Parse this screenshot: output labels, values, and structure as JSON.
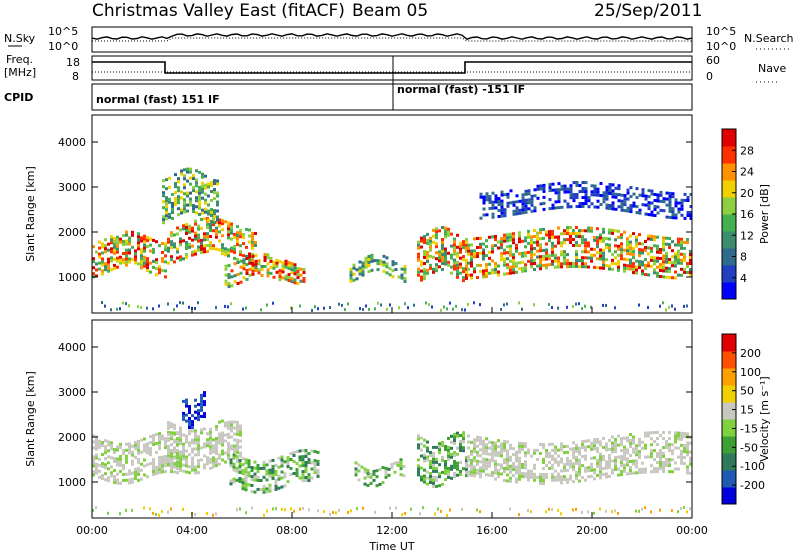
{
  "header": {
    "station_title": "Christmas Valley East (fitACF)",
    "beam_label": "Beam 05",
    "date": "25/Sep/2011"
  },
  "noise_panel": {
    "left_label": "N.Sky",
    "left_ticks": [
      "10^5",
      "10^0"
    ],
    "right_ticks": [
      "10^5",
      "10^0"
    ],
    "right_label": "N.Search"
  },
  "freq_panel": {
    "left_label_1": "Freq.",
    "left_label_2": "[MHz]",
    "left_ticks": [
      "18",
      "8"
    ],
    "right_ticks": [
      "60",
      "0"
    ],
    "right_label": "Nave"
  },
  "cpid_panel": {
    "label": "CPID",
    "mode_1": "normal (fast) 151 IF",
    "mode_2": "normal (fast) -151 IF"
  },
  "chart_data": [
    {
      "type": "heatmap",
      "name": "power",
      "ylabel": "Slant Range [km]",
      "yticks": [
        "1000",
        "2000",
        "3000",
        "4000"
      ],
      "ylim": [
        200,
        4600
      ],
      "xlim_hours": [
        0,
        24
      ],
      "colorbar_label": "Power [dB]",
      "colorbar_ticks": [
        "28",
        "24",
        "20",
        "16",
        "12",
        "8",
        "4"
      ],
      "colorbar_colors": [
        "#0000ff",
        "#2040c0",
        "#2e6b8c",
        "#3c8c6e",
        "#44b050",
        "#8cd040",
        "#f0d000",
        "#ff9000",
        "#ff3000",
        "#e00000"
      ],
      "features": [
        {
          "t0": 0.0,
          "t1": 3.0,
          "r0": 1150,
          "r1": 1900,
          "level": "high"
        },
        {
          "t0": 3.0,
          "t1": 6.5,
          "r0": 1400,
          "r1": 2200,
          "level": "high"
        },
        {
          "t0": 5.3,
          "t1": 8.5,
          "r0": 900,
          "r1": 1400,
          "level": "high"
        },
        {
          "t0": 10.3,
          "t1": 12.5,
          "r0": 1000,
          "r1": 1400,
          "level": "mid"
        },
        {
          "t0": 13.0,
          "t1": 15.0,
          "r0": 1000,
          "r1": 2000,
          "level": "high"
        },
        {
          "t0": 15.0,
          "t1": 24.0,
          "r0": 1100,
          "r1": 2000,
          "level": "high"
        },
        {
          "t0": 2.8,
          "t1": 5.0,
          "r0": 2300,
          "r1": 3300,
          "level": "mid"
        },
        {
          "t0": 15.5,
          "t1": 24.0,
          "r0": 2400,
          "r1": 3000,
          "level": "low"
        }
      ]
    },
    {
      "type": "heatmap",
      "name": "velocity",
      "ylabel": "Slant Range [km]",
      "yticks": [
        "1000",
        "2000",
        "3000",
        "4000"
      ],
      "ylim": [
        200,
        4600
      ],
      "xlim_hours": [
        0,
        24
      ],
      "colorbar_label": "Velocity [m s⁻¹]",
      "colorbar_ticks": [
        "200",
        "100",
        "50",
        "15",
        "-15",
        "-50",
        "-100",
        "-200"
      ],
      "colorbar_colors": [
        "#0000dd",
        "#205ab4",
        "#2e7a5a",
        "#3ca034",
        "#80d040",
        "#c8c8c0",
        "#f0d000",
        "#ffa000",
        "#ff5000",
        "#e00000"
      ],
      "features": [
        {
          "t0": 0.0,
          "t1": 3.5,
          "r0": 1100,
          "r1": 2000,
          "level": "gray"
        },
        {
          "t0": 3.0,
          "t1": 6.0,
          "r0": 1300,
          "r1": 2300,
          "level": "gray"
        },
        {
          "t0": 5.5,
          "t1": 9.0,
          "r0": 900,
          "r1": 1600,
          "level": "green"
        },
        {
          "t0": 10.5,
          "t1": 12.5,
          "r0": 1000,
          "r1": 1400,
          "level": "green"
        },
        {
          "t0": 13.0,
          "t1": 15.0,
          "r0": 1000,
          "r1": 2000,
          "level": "green"
        },
        {
          "t0": 15.0,
          "t1": 24.0,
          "r0": 1100,
          "r1": 2000,
          "level": "gray"
        },
        {
          "t0": 3.6,
          "t1": 4.5,
          "r0": 2300,
          "r1": 2900,
          "level": "blue"
        }
      ]
    }
  ],
  "x_axis": {
    "label": "Time UT",
    "ticks": [
      "00:00",
      "04:00",
      "08:00",
      "12:00",
      "16:00",
      "20:00",
      "00:00"
    ]
  }
}
